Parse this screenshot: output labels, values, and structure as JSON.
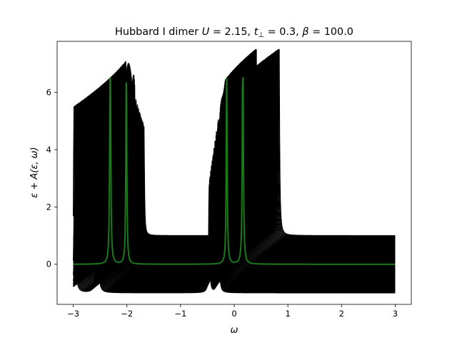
{
  "chart_data": {
    "type": "line",
    "title": "Hubbard I dimer U = 2.15, t⊥ = 0.3, β = 100.0",
    "title_parts": {
      "prefix": "Hubbard I dimer ",
      "U_sym": "U",
      "U_val": " = 2.15, ",
      "t_sym": "t",
      "t_sub": "⊥",
      "t_val": " = 0.3, ",
      "beta_sym": "β",
      "beta_val": " = 100.0"
    },
    "xlabel": "ω",
    "ylabel": "ε + A(ε, ω)",
    "xlim": [
      -3.3,
      3.3
    ],
    "ylim": [
      -1.4,
      7.78
    ],
    "xticks": [
      -3,
      -2,
      -1,
      0,
      1,
      2,
      3
    ],
    "xtick_labels": [
      "−3",
      "−2",
      "−1",
      "0",
      "1",
      "2",
      "3"
    ],
    "yticks": [
      0,
      2,
      4,
      6
    ],
    "ytick_labels": [
      "0",
      "2",
      "4",
      "6"
    ],
    "grid": false,
    "legend": "none",
    "eps_range": [
      -1,
      1
    ],
    "n_traces": 121,
    "omega_range": [
      -3,
      3
    ],
    "model": {
      "U": 2.15,
      "t_perp": 0.3,
      "beta": 100.0,
      "broadening": 0.01
    },
    "series": [
      {
        "color": "#000000"
      },
      {
        "eps": 0.0,
        "color": "#1a7a1a"
      }
    ]
  }
}
